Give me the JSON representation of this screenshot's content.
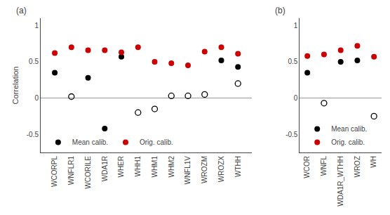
{
  "chart_data": [
    {
      "type": "scatter",
      "title": "(a)",
      "ylabel": "Correlation",
      "categories": [
        "WCORPL",
        "WNFLR1",
        "WCORILE",
        "WDA1R",
        "WHER",
        "WHH1",
        "WHM1",
        "WHM2",
        "WNFL1V",
        "WROZM",
        "WROZX",
        "WTHH"
      ],
      "series": [
        {
          "name": "Mean calib.",
          "color": "#000000",
          "marker": "circle",
          "values": [
            0.35,
            null,
            0.28,
            -0.42,
            0.57,
            null,
            null,
            null,
            null,
            null,
            0.52,
            0.43
          ]
        },
        {
          "name": "Orig. calib.",
          "color": "#cc0000",
          "marker": "circle",
          "values": [
            0.62,
            0.7,
            0.66,
            0.66,
            0.63,
            0.7,
            0.5,
            0.48,
            0.45,
            0.64,
            0.7,
            0.61
          ]
        },
        {
          "color": "#000000",
          "marker": "circle-open",
          "values": [
            null,
            0.02,
            null,
            null,
            null,
            -0.2,
            -0.15,
            0.03,
            0.03,
            0.05,
            null,
            0.2
          ]
        }
      ],
      "ylim": [
        -0.75,
        1.1
      ],
      "yticks": [
        -0.5,
        0,
        0.5,
        1
      ],
      "grid": false,
      "legend": "lower left"
    },
    {
      "type": "scatter",
      "title": "(b)",
      "categories": [
        "WCOR",
        "WNFL",
        "WDA1R_WTHH",
        "WROZ",
        "WH"
      ],
      "series": [
        {
          "name": "Mean calib.",
          "color": "#000000",
          "marker": "circle",
          "values": [
            0.35,
            null,
            0.5,
            0.52,
            null
          ]
        },
        {
          "name": "Orig. calib.",
          "color": "#cc0000",
          "marker": "circle",
          "values": [
            0.58,
            0.6,
            0.66,
            0.72,
            0.57
          ]
        },
        {
          "color": "#000000",
          "marker": "circle-open",
          "values": [
            null,
            -0.07,
            null,
            null,
            -0.25
          ]
        }
      ],
      "ylim": [
        -0.75,
        1.1
      ],
      "yticks": [
        -0.5,
        0,
        0.5,
        1
      ],
      "grid": false,
      "legend": "lower left"
    }
  ]
}
